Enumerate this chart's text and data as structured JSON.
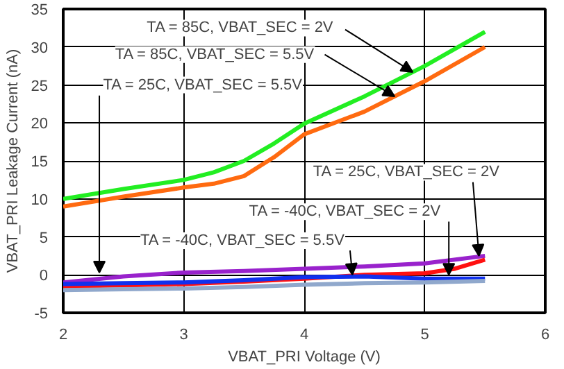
{
  "chart_data": {
    "type": "line",
    "xlabel": "VBAT_PRI Voltage (V)",
    "ylabel": "VBAT_PRI Leakage Current (nA)",
    "xlim": [
      2,
      6
    ],
    "xticks": [
      2,
      3,
      4,
      5,
      6
    ],
    "ylim": [
      -5,
      35
    ],
    "yticks": [
      -5,
      0,
      5,
      10,
      15,
      20,
      25,
      30,
      35
    ],
    "grid": true,
    "marker": "none",
    "line_style": "solid",
    "series": [
      {
        "color": "#22ee22",
        "x": [
          2,
          2.5,
          3,
          3.25,
          3.5,
          3.75,
          4,
          4.5,
          5,
          5.5
        ],
        "values": [
          10,
          11.3,
          12.5,
          13.5,
          15,
          17.3,
          19.9,
          23.5,
          27.5,
          32
        ]
      },
      {
        "color": "#ff6a10",
        "x": [
          2,
          2.5,
          3,
          3.25,
          3.5,
          3.75,
          4,
          4.5,
          5,
          5.5
        ],
        "values": [
          9,
          10.3,
          11.5,
          12,
          13,
          15.5,
          18.5,
          21.5,
          25.5,
          30
        ]
      },
      {
        "color": "#9922cc",
        "x": [
          2,
          2.5,
          3,
          3.5,
          4,
          4.5,
          5,
          5.5
        ],
        "values": [
          -1,
          -0.2,
          0.3,
          0.5,
          0.8,
          1.1,
          1.5,
          2.5
        ]
      },
      {
        "color": "#ff1010",
        "x": [
          2,
          2.5,
          3,
          3.5,
          4,
          4.5,
          5,
          5.25,
          5.5
        ],
        "values": [
          -1.5,
          -1.4,
          -1.2,
          -0.9,
          -0.5,
          0,
          0.2,
          0.8,
          2
        ]
      },
      {
        "color": "#1030ee",
        "x": [
          2,
          2.5,
          3,
          3.5,
          4,
          4.5,
          5,
          5.5
        ],
        "values": [
          -1.2,
          -1.1,
          -1,
          -0.7,
          -0.3,
          -0.2,
          -0.5,
          -0.5
        ]
      },
      {
        "color": "#90a8cc",
        "x": [
          2,
          2.5,
          3,
          3.5,
          4,
          4.5,
          5,
          5.5
        ],
        "values": [
          -2,
          -1.9,
          -1.8,
          -1.6,
          -1.3,
          -1.1,
          -1,
          -0.8
        ]
      }
    ],
    "annotations": [
      {
        "text": "TA = 85C, VBAT_SEC = 2V",
        "x": 4.9,
        "y": 26.7
      },
      {
        "text": "TA = 85C, VBAT_SEC = 5.5V",
        "x": 4.75,
        "y": 23.5
      },
      {
        "text": "TA = 25C, VBAT_SEC = 5.5V",
        "x": 2.3,
        "y": 0.3
      },
      {
        "text": "TA = 25C, VBAT_SEC = 2V",
        "x": 5.45,
        "y": 2.5
      },
      {
        "text": "TA = -40C, VBAT_SEC = 2V",
        "x": 5.2,
        "y": 0
      },
      {
        "text": "TA = -40C, VBAT_SEC = 5.5V",
        "x": 4.4,
        "y": 0
      }
    ]
  }
}
